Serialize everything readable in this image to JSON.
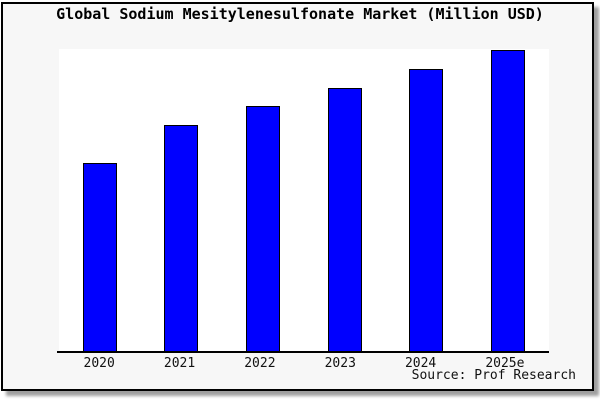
{
  "chart_data": {
    "type": "bar",
    "title": "Global Sodium Mesitylenesulfonate Market (Million USD)",
    "categories": [
      "2020",
      "2021",
      "2022",
      "2023",
      "2024",
      "2025e"
    ],
    "values": [
      50,
      60,
      65,
      70,
      75,
      80
    ],
    "xlabel": "",
    "ylabel": "",
    "ylim": [
      0,
      80
    ],
    "grid": false,
    "legend": false,
    "y_axis_visible": false,
    "bar_color": "#0000ff",
    "bar_border_color": "#000000"
  },
  "footer": {
    "source": "Source: Prof Research"
  },
  "colors": {
    "panel_background": "#f7f7f7",
    "plot_background": "#ffffff",
    "frame_border": "#000000",
    "axis_line": "#000000",
    "bar_fill": "#0000ff",
    "text": "#111111"
  }
}
